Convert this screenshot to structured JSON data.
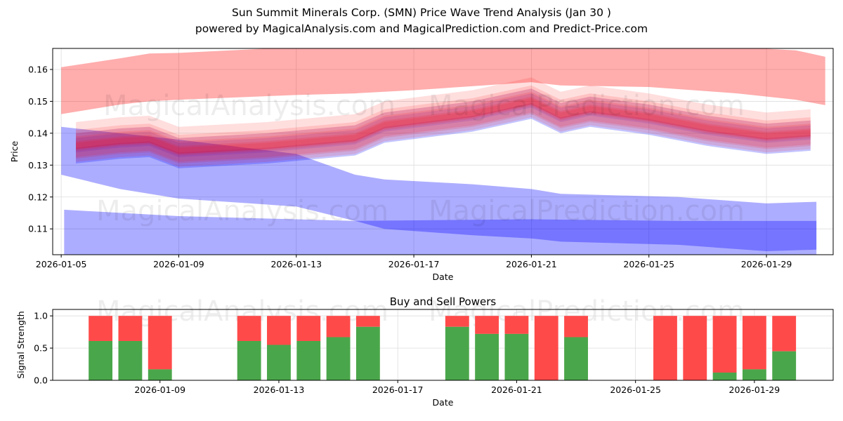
{
  "title_line1": "Sun Summit Minerals Corp. (SMN) Price Wave Trend Analysis (Jan 30 )",
  "title_line2": "powered by MagicalAnalysis.com and MagicalPrediction.com and Predict-Price.com",
  "watermarks": [
    "MagicalAnalysis.com",
    "MagicalPrediction.com"
  ],
  "colors": {
    "red": "#ff0000",
    "blue": "#0000ff",
    "buy": "#4aa64a",
    "sell": "#ff4a4a"
  },
  "chart_data": [
    {
      "type": "area",
      "title": "",
      "xlabel": "Date",
      "ylabel": "Price",
      "xlim_days": [
        -0.29,
        26.27
      ],
      "x_origin": "2026-01-05",
      "ylim": [
        0.1019,
        0.1666
      ],
      "xticks": [
        {
          "day": 0,
          "label": "2026-01-05"
        },
        {
          "day": 4,
          "label": "2026-01-09"
        },
        {
          "day": 8,
          "label": "2026-01-13"
        },
        {
          "day": 12,
          "label": "2026-01-17"
        },
        {
          "day": 16,
          "label": "2026-01-21"
        },
        {
          "day": 20,
          "label": "2026-01-25"
        },
        {
          "day": 24,
          "label": "2026-01-29"
        }
      ],
      "yticks": [
        {
          "v": 0.11,
          "label": "0.11"
        },
        {
          "v": 0.12,
          "label": "0.12"
        },
        {
          "v": 0.13,
          "label": "0.13"
        },
        {
          "v": 0.14,
          "label": "0.14"
        },
        {
          "v": 0.15,
          "label": "0.15"
        },
        {
          "v": 0.16,
          "label": "0.16"
        }
      ],
      "bands": [
        {
          "color": "red",
          "alpha": 0.32,
          "days": [
            0,
            2,
            3,
            4,
            8,
            10,
            12,
            16,
            17,
            20,
            23,
            25,
            26
          ],
          "upper": [
            0.1607,
            0.1635,
            0.165,
            0.1652,
            0.167,
            0.167,
            0.167,
            0.167,
            0.167,
            0.167,
            0.167,
            0.166,
            0.164
          ],
          "lower": [
            0.146,
            0.149,
            0.15,
            0.1505,
            0.152,
            0.1525,
            0.1535,
            0.156,
            0.155,
            0.1545,
            0.1525,
            0.1505,
            0.1488
          ]
        },
        {
          "color": "blue",
          "alpha": 0.32,
          "days": [
            0,
            2,
            4,
            8,
            10,
            11,
            14,
            16,
            17,
            21,
            24,
            25.7
          ],
          "upper": [
            0.142,
            0.14,
            0.138,
            0.1335,
            0.127,
            0.1255,
            0.124,
            0.1225,
            0.121,
            0.12,
            0.118,
            0.1185
          ],
          "lower": [
            0.127,
            0.1225,
            0.1195,
            0.117,
            0.1125,
            0.11,
            0.108,
            0.107,
            0.106,
            0.105,
            0.103,
            0.1035
          ]
        },
        {
          "color": "blue",
          "alpha": 0.32,
          "days": [
            0.1,
            4,
            8,
            10,
            16,
            21,
            25.7
          ],
          "upper": [
            0.116,
            0.114,
            0.113,
            0.1125,
            0.113,
            0.1125,
            0.1125
          ],
          "lower": [
            0.1,
            0.1,
            0.1,
            0.1,
            0.1,
            0.1,
            0.1
          ]
        }
      ],
      "cluster": {
        "days": [
          0.5,
          2,
          3,
          4,
          7,
          10,
          11,
          14,
          16,
          17,
          18,
          20,
          22,
          24,
          25.5
        ],
        "center": [
          0.136,
          0.1375,
          0.138,
          0.1345,
          0.136,
          0.1385,
          0.1425,
          0.146,
          0.15,
          0.1455,
          0.1475,
          0.145,
          0.1415,
          0.139,
          0.14
        ],
        "red_spreads": [
          [
            0.0,
            0.004
          ],
          [
            0.002,
            0.003
          ],
          [
            -0.002,
            0.003
          ],
          [
            0.003,
            0.0045
          ],
          [
            -0.001,
            0.0025
          ],
          [
            0.001,
            0.002
          ]
        ],
        "blue_spreads": [
          [
            -0.0015,
            0.004
          ],
          [
            0.001,
            0.003
          ],
          [
            -0.003,
            0.0025
          ]
        ]
      }
    },
    {
      "type": "bar",
      "title": "Buy and Sell Powers",
      "xlabel": "Date",
      "ylabel": "Signal Strength",
      "xlim_days": [
        0.39,
        26.65
      ],
      "ylim": [
        0,
        1.1
      ],
      "xticks": [
        {
          "day": 4,
          "label": "2026-01-09"
        },
        {
          "day": 8,
          "label": "2026-01-13"
        },
        {
          "day": 12,
          "label": "2026-01-17"
        },
        {
          "day": 16,
          "label": "2026-01-21"
        },
        {
          "day": 20,
          "label": "2026-01-25"
        },
        {
          "day": 24,
          "label": "2026-01-29"
        }
      ],
      "yticks": [
        {
          "v": 0,
          "label": "0.0"
        },
        {
          "v": 0.5,
          "label": "0.5"
        },
        {
          "v": 1,
          "label": "1.0"
        }
      ],
      "days": [
        2,
        3,
        4,
        7,
        8,
        9,
        10,
        11,
        14,
        15,
        16,
        17,
        18,
        21,
        22,
        23,
        24,
        25
      ],
      "buy": [
        0.61,
        0.61,
        0.17,
        0.61,
        0.55,
        0.61,
        0.67,
        0.83,
        0.83,
        0.72,
        0.72,
        0,
        0.67,
        0,
        0,
        0.12,
        0.17,
        0.45
      ]
    }
  ]
}
